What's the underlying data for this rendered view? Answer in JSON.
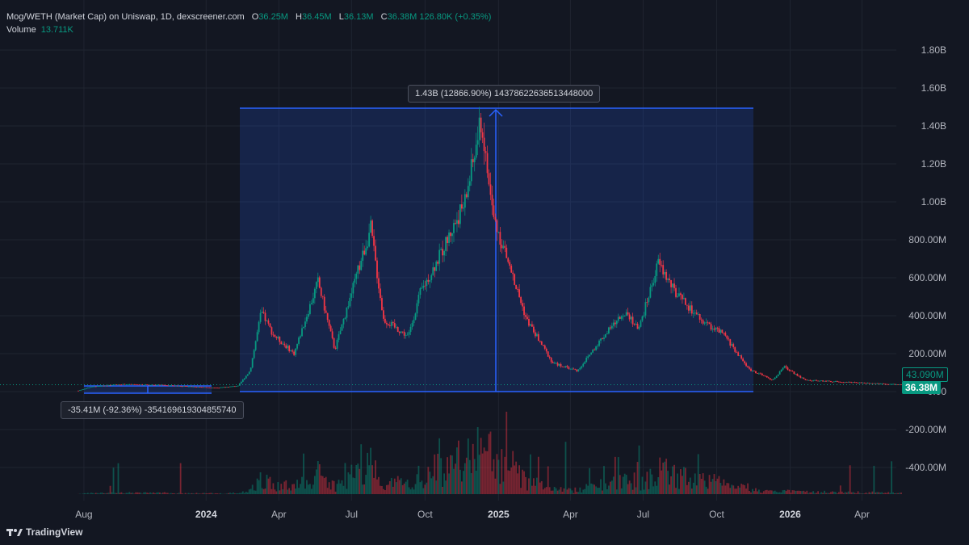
{
  "header": {
    "symbol": "Mog/WETH (Market Cap) on Uniswap, 1D, dexscreener.com",
    "o_label": "O",
    "o": "36.25M",
    "h_label": "H",
    "h": "36.45M",
    "l_label": "L",
    "l": "36.13M",
    "c_label": "C",
    "c": "36.38M",
    "change": "126.80K (+0.35%)"
  },
  "volume": {
    "label": "Volume",
    "value": "13.711K"
  },
  "branding": {
    "name": "TradingView"
  },
  "measure_up": {
    "label": "1.43B (12866.90%) 1437862263651344800​0"
  },
  "measure_down": {
    "label": "-35.41M (-92.36%) -35416961930485574​0"
  },
  "badges": {
    "prev": "43.090M",
    "last": "36.38M"
  },
  "colors": {
    "up": "#089981",
    "down": "#f23645",
    "accent": "#2962ff"
  },
  "chart_data": {
    "type": "candlestick",
    "title": "Mog/WETH (Market Cap) on Uniswap, 1D, dexscreener.com",
    "y_ticks": [
      "1.80B",
      "1.60B",
      "1.40B",
      "1.20B",
      "1.00B",
      "800.00M",
      "600.00M",
      "400.00M",
      "200.00M",
      "0.00",
      "-200.00M",
      "-400.00M"
    ],
    "x_ticks": [
      "Aug",
      "2024",
      "Apr",
      "Jul",
      "Oct",
      "2025",
      "Apr",
      "Jul",
      "Oct",
      "2026",
      "Apr"
    ],
    "ylim": [
      -450000000,
      1850000000
    ],
    "grid": true,
    "series": [
      {
        "values_approx_market_cap_usd": [
          [
            "2023-07-25",
            5000000
          ],
          [
            "2023-08-10",
            25000000
          ],
          [
            "2023-09-15",
            38000000
          ],
          [
            "2023-11-01",
            35000000
          ],
          [
            "2024-01-15",
            20000000
          ],
          [
            "2024-02-10",
            30000000
          ],
          [
            "2024-02-25",
            110000000
          ],
          [
            "2024-03-10",
            420000000
          ],
          [
            "2024-03-25",
            300000000
          ],
          [
            "2024-04-20",
            200000000
          ],
          [
            "2024-05-20",
            580000000
          ],
          [
            "2024-06-10",
            220000000
          ],
          [
            "2024-07-10",
            650000000
          ],
          [
            "2024-07-25",
            860000000
          ],
          [
            "2024-08-10",
            380000000
          ],
          [
            "2024-09-10",
            290000000
          ],
          [
            "2024-09-25",
            520000000
          ],
          [
            "2024-10-20",
            720000000
          ],
          [
            "2024-11-20",
            1000000000
          ],
          [
            "2024-12-10",
            1420000000
          ],
          [
            "2024-12-25",
            930000000
          ],
          [
            "2025-01-10",
            720000000
          ],
          [
            "2025-02-05",
            380000000
          ],
          [
            "2025-03-10",
            150000000
          ],
          [
            "2025-04-10",
            110000000
          ],
          [
            "2025-05-10",
            280000000
          ],
          [
            "2025-06-10",
            430000000
          ],
          [
            "2025-06-25",
            320000000
          ],
          [
            "2025-07-20",
            680000000
          ],
          [
            "2025-08-10",
            520000000
          ],
          [
            "2025-09-10",
            380000000
          ],
          [
            "2025-10-10",
            300000000
          ],
          [
            "2025-11-10",
            120000000
          ],
          [
            "2025-12-10",
            60000000
          ],
          [
            "2025-12-25",
            130000000
          ],
          [
            "2026-01-20",
            60000000
          ],
          [
            "2026-04-10",
            45000000
          ],
          [
            "2026-05-20",
            36380000
          ]
        ]
      }
    ]
  }
}
